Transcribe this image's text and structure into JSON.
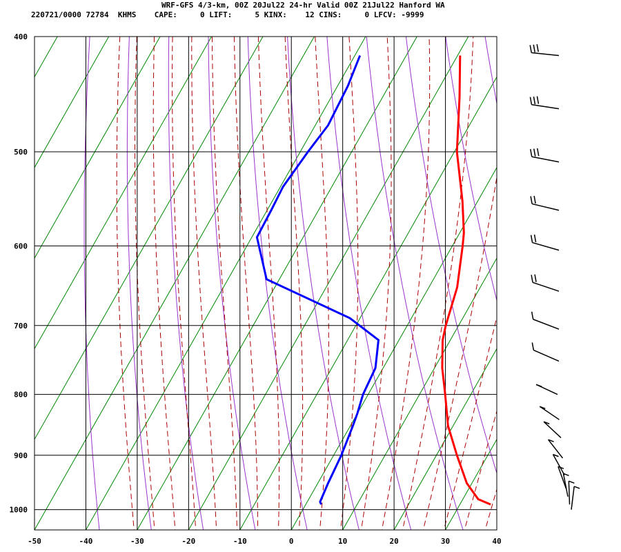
{
  "header": {
    "line1": "WRF-GFS 4/3-km, 00Z 20Jul22 24-hr Valid 00Z 21Jul22 Hanford WA",
    "line2": "220721/0000 72784  KHMS    CAPE:     0 LIFT:     5 KINX:    12 CINS:     0 LFCV: -9999"
  },
  "chart_data": {
    "type": "line",
    "chart_kind": "skew-T log-P sounding",
    "x_axis": {
      "unit": "degC",
      "range": [
        -50,
        40
      ],
      "ticks": [
        -50,
        -40,
        -30,
        -20,
        -10,
        0,
        10,
        20,
        30,
        40
      ]
    },
    "y_axis": {
      "unit": "hPa",
      "scale": "log",
      "range": [
        1040,
        400
      ],
      "ticks": [
        400,
        500,
        600,
        700,
        800,
        900,
        1000
      ]
    },
    "grid": true,
    "series": [
      {
        "key": "temperature",
        "color": "#ff0000",
        "points": [
          [
            415,
            -19.5
          ],
          [
            450,
            -15
          ],
          [
            500,
            -9.5
          ],
          [
            550,
            -3
          ],
          [
            585,
            0.8
          ],
          [
            600,
            2
          ],
          [
            650,
            5.5
          ],
          [
            700,
            7.5
          ],
          [
            720,
            8.5
          ],
          [
            760,
            11.5
          ],
          [
            800,
            15
          ],
          [
            850,
            19
          ],
          [
            900,
            24
          ],
          [
            950,
            29
          ],
          [
            980,
            33
          ],
          [
            990,
            36
          ]
        ]
      },
      {
        "key": "dewpoint",
        "color": "#0000ff",
        "points": [
          [
            415,
            -39
          ],
          [
            440,
            -38
          ],
          [
            475,
            -37.5
          ],
          [
            500,
            -38.5
          ],
          [
            535,
            -39.5
          ],
          [
            560,
            -39.2
          ],
          [
            590,
            -39
          ],
          [
            640,
            -32.5
          ],
          [
            690,
            -12
          ],
          [
            720,
            -4
          ],
          [
            760,
            -1.5
          ],
          [
            800,
            -1
          ],
          [
            830,
            0
          ],
          [
            850,
            0.5
          ],
          [
            900,
            1.5
          ],
          [
            950,
            2
          ],
          [
            985,
            2.5
          ],
          [
            990,
            3
          ]
        ]
      }
    ],
    "wind_barbs_hpa": [
      415,
      460,
      510,
      560,
      605,
      655,
      705,
      750,
      800,
      840,
      870,
      905,
      935,
      960,
      975,
      990,
      1000
    ]
  }
}
